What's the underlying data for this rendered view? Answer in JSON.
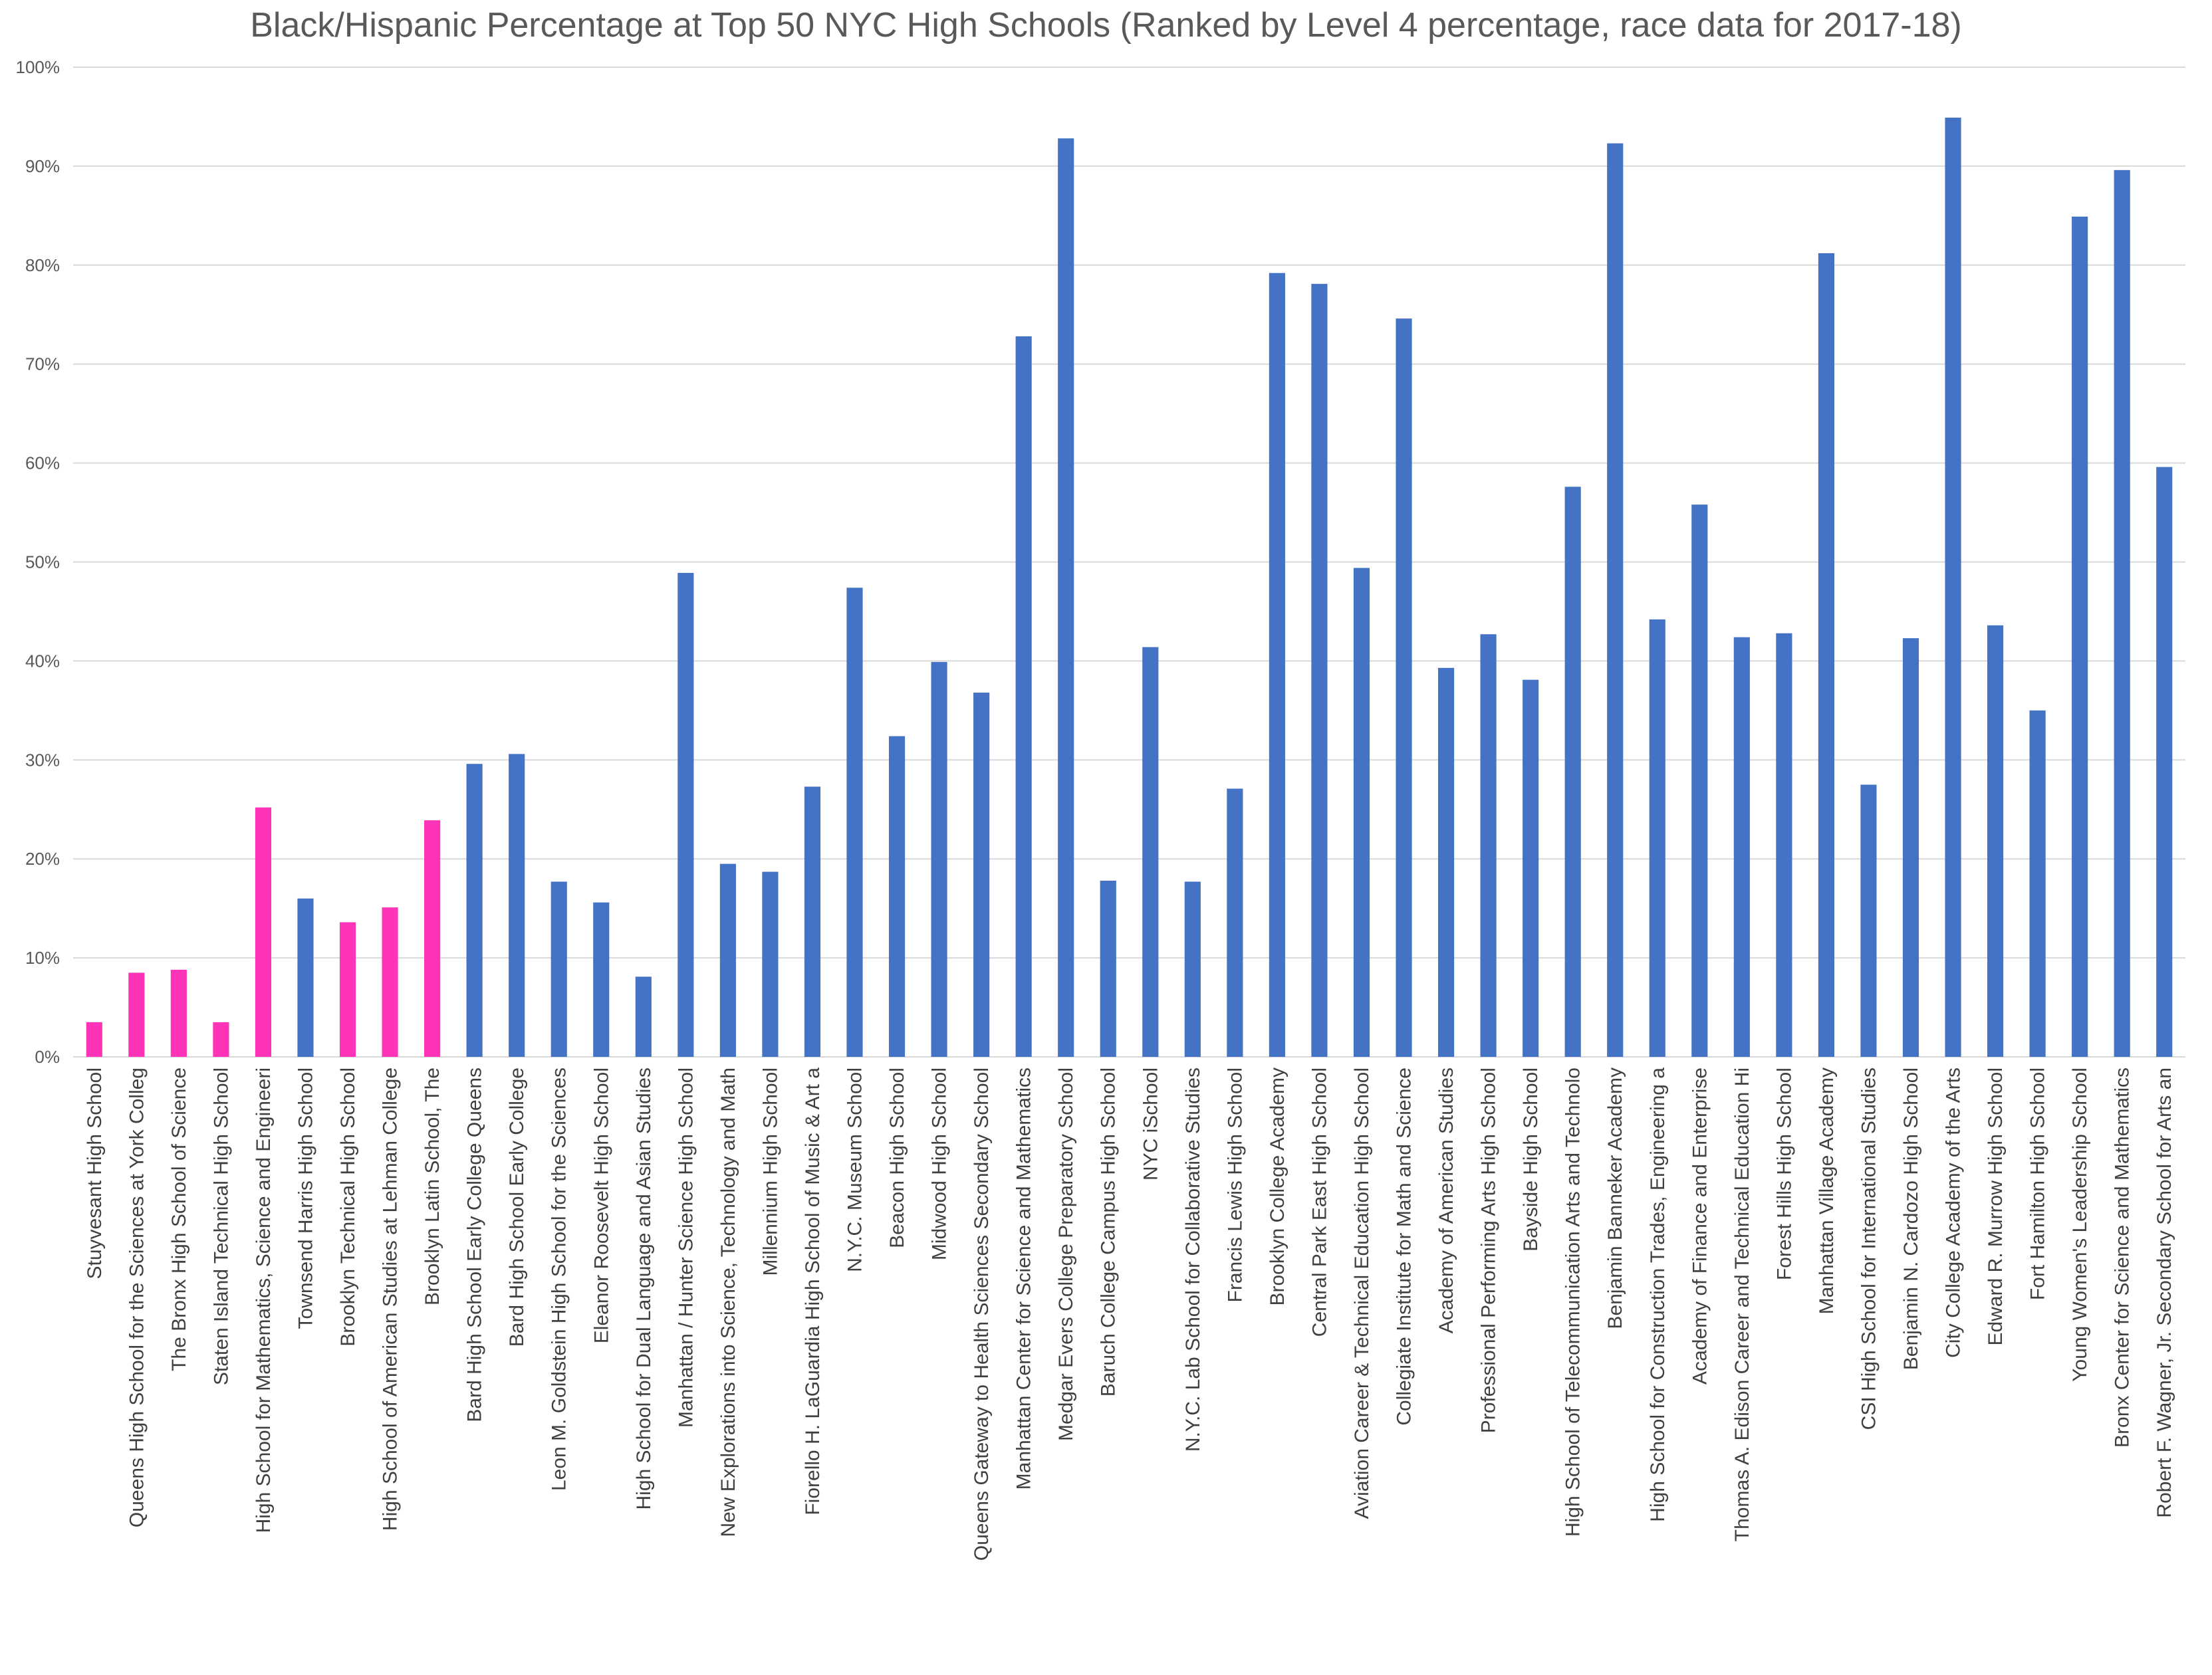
{
  "chart_data": {
    "type": "bar",
    "title": "Black/Hispanic Percentage at Top 50 NYC High Schools (Ranked by Level 4 percentage, race data for 2017-18)",
    "xlabel": "",
    "ylabel": "",
    "ylim": [
      0,
      100
    ],
    "yticks": [
      "0%",
      "10%",
      "20%",
      "30%",
      "40%",
      "50%",
      "60%",
      "70%",
      "80%",
      "90%",
      "100%"
    ],
    "grid": true,
    "legend": "none",
    "colors": {
      "default": "#4472C4",
      "highlight": "#FF33B8",
      "grid": "#D9D9D9",
      "text": "#595959"
    },
    "categories": [
      "Stuyvesant High School",
      "Queens High School for the Sciences at York Colleg",
      "The Bronx High School of Science",
      "Staten Island Technical High School",
      "High School for Mathematics, Science and Engineeri",
      "Townsend Harris High School",
      "Brooklyn Technical High School",
      "High School of American Studies at Lehman College",
      "Brooklyn Latin School, The",
      "Bard High School Early College Queens",
      "Bard High School Early College",
      "Leon M. Goldstein High School for the Sciences",
      "Eleanor Roosevelt High School",
      "High School for Dual Language and Asian Studies",
      "Manhattan / Hunter Science High School",
      "New Explorations into Science, Technology and Math",
      "Millennium High School",
      "Fiorello H. LaGuardia High School of Music & Art a",
      "N.Y.C. Museum School",
      "Beacon High School",
      "Midwood High School",
      "Queens Gateway to Health Sciences Secondary School",
      "Manhattan Center for Science and Mathematics",
      "Medgar Evers College Preparatory School",
      "Baruch College Campus High School",
      "NYC iSchool",
      "N.Y.C. Lab School for Collaborative Studies",
      "Francis Lewis High School",
      "Brooklyn College Academy",
      "Central Park East High School",
      "Aviation Career & Technical Education High School",
      "Collegiate Institute for Math and Science",
      "Academy of American Studies",
      "Professional Performing Arts High School",
      "Bayside High School",
      "High School of Telecommunication Arts and Technolo",
      "Benjamin Banneker Academy",
      "High School for Construction Trades, Engineering a",
      "Academy of Finance and Enterprise",
      "Thomas A. Edison Career and Technical Education Hi",
      "Forest Hills High School",
      "Manhattan Village Academy",
      "CSI High School for International Studies",
      "Benjamin N. Cardozo High School",
      "City College Academy of the Arts",
      "Edward R. Murrow High School",
      "Fort Hamilton High School",
      "Young Women's Leadership School",
      "Bronx Center for Science and Mathematics",
      "Robert F. Wagner, Jr. Secondary School for Arts an"
    ],
    "values": [
      3.5,
      8.5,
      8.8,
      3.5,
      25.2,
      16.0,
      13.6,
      15.1,
      23.9,
      29.6,
      30.6,
      17.7,
      15.6,
      8.1,
      48.9,
      19.5,
      18.7,
      27.3,
      47.4,
      32.4,
      39.9,
      36.8,
      72.8,
      92.8,
      17.8,
      41.4,
      17.7,
      27.1,
      79.2,
      78.1,
      49.4,
      74.6,
      39.3,
      42.7,
      38.1,
      57.6,
      92.3,
      44.2,
      55.8,
      42.4,
      42.8,
      81.2,
      27.5,
      42.3,
      94.9,
      43.6,
      35.0,
      84.9,
      89.6,
      59.6
    ],
    "highlight": [
      true,
      true,
      true,
      true,
      true,
      false,
      true,
      true,
      true,
      false,
      false,
      false,
      false,
      false,
      false,
      false,
      false,
      false,
      false,
      false,
      false,
      false,
      false,
      false,
      false,
      false,
      false,
      false,
      false,
      false,
      false,
      false,
      false,
      false,
      false,
      false,
      false,
      false,
      false,
      false,
      false,
      false,
      false,
      false,
      false,
      false,
      false,
      false,
      false,
      false
    ]
  }
}
